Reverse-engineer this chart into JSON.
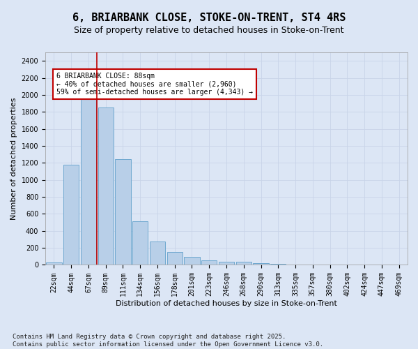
{
  "title": "6, BRIARBANK CLOSE, STOKE-ON-TRENT, ST4 4RS",
  "subtitle": "Size of property relative to detached houses in Stoke-on-Trent",
  "xlabel": "Distribution of detached houses by size in Stoke-on-Trent",
  "ylabel": "Number of detached properties",
  "categories": [
    "22sqm",
    "44sqm",
    "67sqm",
    "89sqm",
    "111sqm",
    "134sqm",
    "156sqm",
    "178sqm",
    "201sqm",
    "223sqm",
    "246sqm",
    "268sqm",
    "290sqm",
    "313sqm",
    "335sqm",
    "357sqm",
    "380sqm",
    "402sqm",
    "424sqm",
    "447sqm",
    "469sqm"
  ],
  "values": [
    28,
    1175,
    1975,
    1855,
    1245,
    515,
    275,
    155,
    95,
    50,
    40,
    38,
    22,
    8,
    4,
    3,
    2,
    2,
    1,
    1,
    1
  ],
  "bar_color": "#b8cfe8",
  "bar_edge_color": "#6fa8d0",
  "vline_color": "#c00000",
  "annotation_text": "6 BRIARBANK CLOSE: 88sqm\n← 40% of detached houses are smaller (2,960)\n59% of semi-detached houses are larger (4,343) →",
  "annotation_box_color": "#ffffff",
  "annotation_edge_color": "#c00000",
  "footer": "Contains HM Land Registry data © Crown copyright and database right 2025.\nContains public sector information licensed under the Open Government Licence v3.0.",
  "ylim": [
    0,
    2500
  ],
  "yticks": [
    0,
    200,
    400,
    600,
    800,
    1000,
    1200,
    1400,
    1600,
    1800,
    2000,
    2200,
    2400
  ],
  "grid_color": "#c8d4e8",
  "background_color": "#dce6f5",
  "title_fontsize": 11,
  "subtitle_fontsize": 9,
  "axis_label_fontsize": 8,
  "tick_fontsize": 7,
  "footer_fontsize": 6.5
}
